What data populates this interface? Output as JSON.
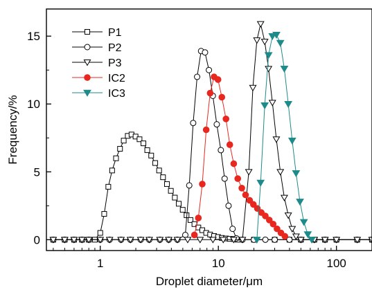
{
  "chart_data": {
    "type": "line",
    "title": "",
    "xlabel": "Droplet diameter/μm",
    "ylabel": "Frequency/%",
    "xscale": "log",
    "xlim": [
      0.35,
      200
    ],
    "ylim": [
      -0.8,
      17
    ],
    "x_ticks": [
      1,
      10,
      100
    ],
    "x_tick_labels": [
      "1",
      "10",
      "100"
    ],
    "y_ticks": [
      0,
      5,
      10,
      15
    ],
    "y_tick_labels": [
      "0",
      "5",
      "10",
      "15"
    ],
    "grid": false,
    "legend_position": "top-left",
    "series": [
      {
        "name": "P1",
        "marker": "square-open",
        "color": "#000000",
        "points": [
          [
            0.4,
            0
          ],
          [
            0.5,
            0
          ],
          [
            0.6,
            0
          ],
          [
            0.7,
            0
          ],
          [
            0.8,
            0
          ],
          [
            0.9,
            0
          ],
          [
            1.0,
            0.5
          ],
          [
            1.08,
            1.9
          ],
          [
            1.17,
            3.9
          ],
          [
            1.26,
            5.1
          ],
          [
            1.36,
            6.0
          ],
          [
            1.47,
            6.7
          ],
          [
            1.58,
            7.3
          ],
          [
            1.71,
            7.65
          ],
          [
            1.84,
            7.75
          ],
          [
            1.99,
            7.6
          ],
          [
            2.15,
            7.4
          ],
          [
            2.32,
            7.1
          ],
          [
            2.5,
            6.6
          ],
          [
            2.7,
            6.2
          ],
          [
            2.92,
            5.65
          ],
          [
            3.15,
            5.1
          ],
          [
            3.4,
            4.6
          ],
          [
            3.67,
            4.1
          ],
          [
            3.96,
            3.6
          ],
          [
            4.28,
            3.1
          ],
          [
            4.62,
            2.65
          ],
          [
            4.99,
            2.2
          ],
          [
            5.38,
            1.8
          ],
          [
            5.81,
            1.45
          ],
          [
            6.27,
            1.15
          ],
          [
            6.77,
            0.9
          ],
          [
            7.31,
            0.7
          ],
          [
            7.89,
            0.5
          ],
          [
            8.52,
            0.38
          ],
          [
            9.2,
            0.27
          ],
          [
            9.93,
            0.2
          ],
          [
            10.7,
            0.13
          ],
          [
            11.6,
            0.09
          ],
          [
            12.5,
            0.06
          ],
          [
            13.5,
            0.05
          ],
          [
            14.6,
            0
          ],
          [
            20,
            0
          ],
          [
            30,
            0
          ],
          [
            40,
            0
          ],
          [
            50,
            0
          ],
          [
            65,
            0
          ],
          [
            80,
            0
          ],
          [
            100,
            0
          ],
          [
            150,
            0
          ],
          [
            200,
            0
          ]
        ]
      },
      {
        "name": "P2",
        "marker": "circle-open",
        "color": "#000000",
        "points": [
          [
            0.4,
            0
          ],
          [
            0.5,
            0
          ],
          [
            0.6,
            0
          ],
          [
            0.7,
            0
          ],
          [
            0.8,
            0
          ],
          [
            1.0,
            0
          ],
          [
            1.2,
            0
          ],
          [
            1.5,
            0
          ],
          [
            1.8,
            0
          ],
          [
            2.2,
            0
          ],
          [
            2.6,
            0
          ],
          [
            3.2,
            0
          ],
          [
            3.8,
            0
          ],
          [
            4.5,
            0
          ],
          [
            5.25,
            0.35
          ],
          [
            5.67,
            4.0
          ],
          [
            6.12,
            8.6
          ],
          [
            6.61,
            12.0
          ],
          [
            7.14,
            13.9
          ],
          [
            7.71,
            13.8
          ],
          [
            8.32,
            12.5
          ],
          [
            8.98,
            10.6
          ],
          [
            9.7,
            8.5
          ],
          [
            10.5,
            6.6
          ],
          [
            11.3,
            4.5
          ],
          [
            12.2,
            2.5
          ],
          [
            13.2,
            0.8
          ],
          [
            14.2,
            0.1
          ],
          [
            16,
            0
          ],
          [
            20,
            0
          ],
          [
            25,
            0
          ],
          [
            30,
            0
          ],
          [
            40,
            0
          ],
          [
            50,
            0
          ],
          [
            65,
            0
          ],
          [
            80,
            0
          ],
          [
            100,
            0
          ],
          [
            150,
            0
          ],
          [
            200,
            0
          ]
        ]
      },
      {
        "name": "P3",
        "marker": "triangle-down-open",
        "color": "#000000",
        "points": [
          [
            0.4,
            0
          ],
          [
            0.5,
            0
          ],
          [
            0.6,
            0
          ],
          [
            0.7,
            0
          ],
          [
            0.8,
            0
          ],
          [
            1.0,
            0
          ],
          [
            1.2,
            0
          ],
          [
            1.5,
            0
          ],
          [
            1.8,
            0
          ],
          [
            2.2,
            0
          ],
          [
            2.6,
            0
          ],
          [
            3.2,
            0
          ],
          [
            3.8,
            0
          ],
          [
            4.5,
            0
          ],
          [
            5.5,
            0
          ],
          [
            7,
            0
          ],
          [
            9,
            0
          ],
          [
            11,
            0
          ],
          [
            13.5,
            0
          ],
          [
            16,
            0
          ],
          [
            18.1,
            5.0
          ],
          [
            19.6,
            11.2
          ],
          [
            21.2,
            14.7
          ],
          [
            22.8,
            15.9
          ],
          [
            24.7,
            14.6
          ],
          [
            26.6,
            12.6
          ],
          [
            28.7,
            10.1
          ],
          [
            31.0,
            7.4
          ],
          [
            33.5,
            5.0
          ],
          [
            36.2,
            3.1
          ],
          [
            39.1,
            1.8
          ],
          [
            42.2,
            0.8
          ],
          [
            45.5,
            0.25
          ],
          [
            50,
            0
          ],
          [
            65,
            0
          ],
          [
            80,
            0
          ],
          [
            100,
            0
          ],
          [
            150,
            0
          ],
          [
            200,
            0
          ]
        ]
      },
      {
        "name": "IC2",
        "marker": "circle-filled",
        "color": "#e8271f",
        "points": [
          [
            6.27,
            0.35
          ],
          [
            6.77,
            1.6
          ],
          [
            7.31,
            4.1
          ],
          [
            7.89,
            8.1
          ],
          [
            8.52,
            10.8
          ],
          [
            9.2,
            12.0
          ],
          [
            9.93,
            11.8
          ],
          [
            10.7,
            10.5
          ],
          [
            11.6,
            8.9
          ],
          [
            12.5,
            7.0
          ],
          [
            13.5,
            5.6
          ],
          [
            14.6,
            4.5
          ],
          [
            15.8,
            3.8
          ],
          [
            17.0,
            3.3
          ],
          [
            18.4,
            2.9
          ],
          [
            19.8,
            2.6
          ],
          [
            21.4,
            2.3
          ],
          [
            23.1,
            2.0
          ],
          [
            25.0,
            1.75
          ],
          [
            27.0,
            1.45
          ],
          [
            29.1,
            1.15
          ],
          [
            31.4,
            0.8
          ],
          [
            33.9,
            0.5
          ],
          [
            36.6,
            0.25
          ]
        ]
      },
      {
        "name": "IC3",
        "marker": "triangle-down-filled",
        "color": "#1e8a8a",
        "points": [
          [
            21.2,
            0
          ],
          [
            22.8,
            4.2
          ],
          [
            24.7,
            9.9
          ],
          [
            26.6,
            13.6
          ],
          [
            28.7,
            15.0
          ],
          [
            31.0,
            15.1
          ],
          [
            33.5,
            14.5
          ],
          [
            36.2,
            12.6
          ],
          [
            39.1,
            10.0
          ],
          [
            42.2,
            7.3
          ],
          [
            45.5,
            4.9
          ],
          [
            49.1,
            2.8
          ],
          [
            53.0,
            1.3
          ],
          [
            57.2,
            0.4
          ],
          [
            61.8,
            0
          ]
        ]
      }
    ]
  }
}
